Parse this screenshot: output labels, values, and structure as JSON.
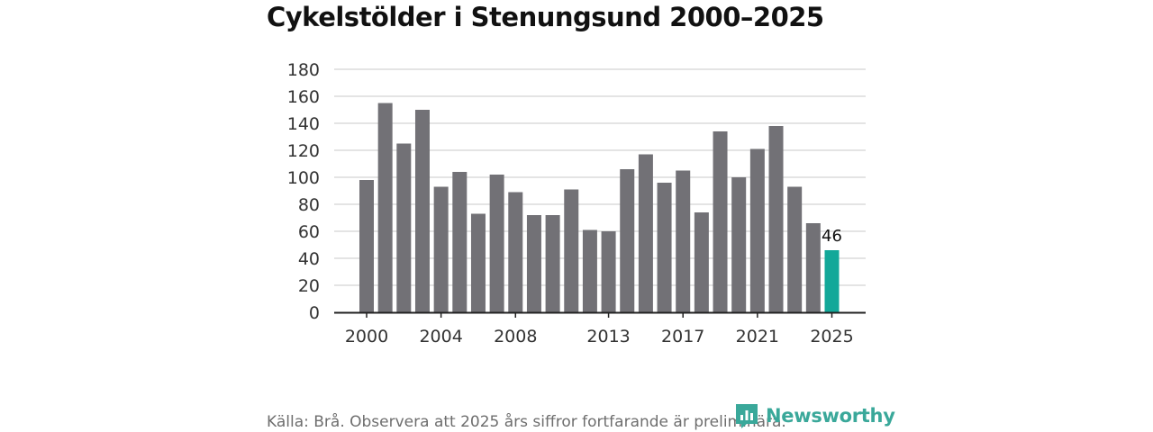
{
  "header": {
    "title": "Cykelstölder i Stenungsund 2000–2025"
  },
  "footer": {
    "source": "Källa: Brå. Observera att 2025 års siffror fortfarande är preliminära.",
    "brand": "Newsworthy"
  },
  "colors": {
    "bar": "#727176",
    "highlight": "#12a899",
    "grid": "#dcdcdc",
    "axis": "#222222",
    "brand": "#3aa89a"
  },
  "chart_data": {
    "type": "bar",
    "title": "Cykelstölder i Stenungsund 2000–2025",
    "xlabel": "",
    "ylabel": "",
    "ylim": [
      0,
      180
    ],
    "yticks": [
      0,
      20,
      40,
      60,
      80,
      100,
      120,
      140,
      160,
      180
    ],
    "grid": true,
    "categories": [
      2000,
      2001,
      2002,
      2003,
      2004,
      2005,
      2006,
      2007,
      2008,
      2009,
      2010,
      2011,
      2012,
      2013,
      2014,
      2015,
      2016,
      2017,
      2018,
      2019,
      2020,
      2021,
      2022,
      2023,
      2024,
      2025
    ],
    "values": [
      98,
      155,
      125,
      150,
      93,
      104,
      73,
      102,
      89,
      72,
      72,
      91,
      61,
      60,
      106,
      117,
      96,
      105,
      74,
      134,
      100,
      121,
      138,
      93,
      66,
      46
    ],
    "xtick_labels": [
      "2000",
      "2004",
      "2008",
      "2013",
      "2017",
      "2021",
      "2025"
    ],
    "highlight": {
      "category": 2025,
      "label": "46"
    }
  }
}
